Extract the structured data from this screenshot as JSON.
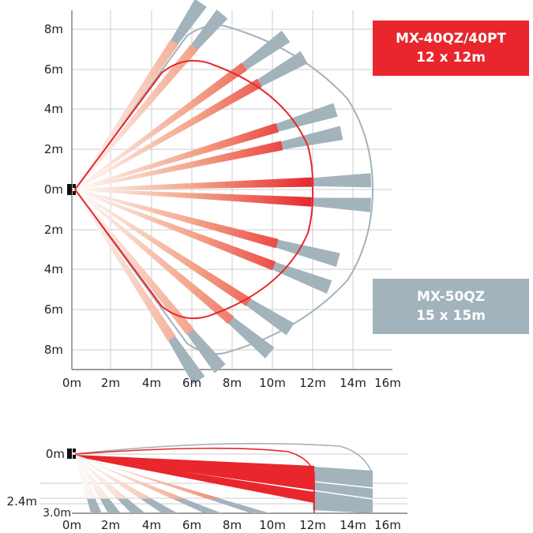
{
  "top_view": {
    "y_ticks": [
      "8m",
      "6m",
      "4m",
      "2m",
      "0m",
      "2m",
      "4m",
      "6m",
      "8m"
    ],
    "x_ticks": [
      "0m",
      "2m",
      "4m",
      "6m",
      "8m",
      "10m",
      "12m",
      "14m",
      "16m"
    ]
  },
  "side_view": {
    "y_labels": {
      "top": "0m",
      "mid": "2.4m",
      "bottom": "3.0m"
    },
    "x_ticks": [
      "0m",
      "2m",
      "4m",
      "6m",
      "8m",
      "10m",
      "12m",
      "14m",
      "16m"
    ]
  },
  "badges": {
    "mx40": {
      "line1": "MX-40QZ/40PT",
      "line2": "12 x 12m",
      "color": "#e8262c"
    },
    "mx50": {
      "line1": "MX-50QZ",
      "line2": "15 x 15m",
      "color": "#a2b3bc"
    }
  },
  "colors": {
    "red": "#e8262c",
    "grey": "#a2b3bc",
    "grid": "#cccccc",
    "sensor": "#111111"
  }
}
